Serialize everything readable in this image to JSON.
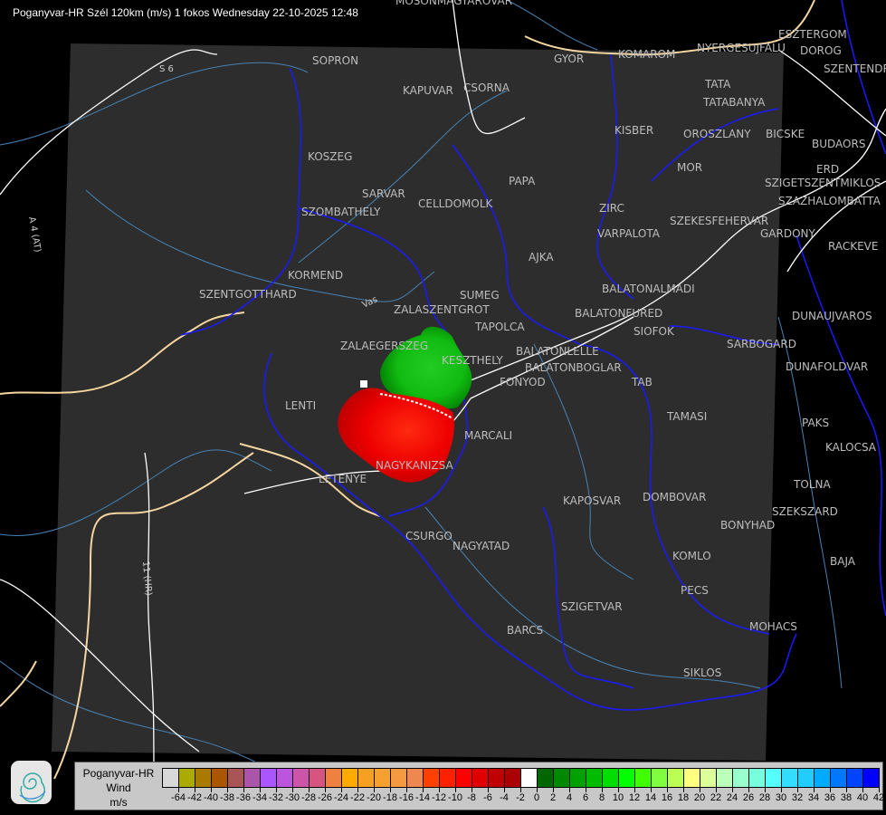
{
  "title": "Poganyvar-HR Szél 120km (m/s) 1 fokos Wednesday 22-10-2025 12:48",
  "colors": {
    "background": "#000000",
    "radar_area": "#2d2d2d",
    "roads": "#ffffff",
    "borders": "#0000ff",
    "rivers": "#4682b4",
    "country_border": "#f5d5a0",
    "city_labels": "#bdbdbd"
  },
  "cities": [
    "MOSONMAGYAROVAR",
    "SOPRON",
    "KAPUVAR",
    "CSORNA",
    "GYOR",
    "KOMAROM",
    "ESZTERGOM",
    "NYERGESUJFALU",
    "DOROG",
    "SZENTENDRE",
    "TATA",
    "TATABANYA",
    "KISBER",
    "OROSZLANY",
    "BICSKE",
    "BUDAORS",
    "MOR",
    "ERD",
    "SZIGETSZENTMIKLOS",
    "SZAZHALOMBATTA",
    "KOSZEG",
    "PAPA",
    "SARVAR",
    "SZOMBATHELY",
    "CELLDOMOLK",
    "ZIRC",
    "VARPALOTA",
    "SZEKESFEHERVAR",
    "GARDONY",
    "RACKEVE",
    "AJKA",
    "KORMEND",
    "SZENTGOTTHARD",
    "BALATONALMADI",
    "SUMEG",
    "ZALASZENTGROT",
    "BALATONFURED",
    "SIOFOK",
    "DUNAUJVAROS",
    "TAPOLCA",
    "SARBOGARD",
    "ZALAEGERSZEG",
    "KESZTHELY",
    "BALATONLELLE",
    "BALATONBOGLAR",
    "FONYOD",
    "DUNAFOLDVAR",
    "TAB",
    "LENTI",
    "TAMASI",
    "PAKS",
    "MARCALI",
    "KALOCSA",
    "NAGYKANIZSA",
    "LETENYE",
    "TOLNA",
    "KAPOSVAR",
    "DOMBOVAR",
    "SZEKSZARD",
    "BONYHAD",
    "CSURGO",
    "NAGYATAD",
    "KOMLO",
    "BAJA",
    "PECS",
    "SZIGETVAR",
    "MOHACS",
    "BARCS",
    "SIKLOS"
  ],
  "road_labels": [
    "S 6",
    "A 4 (AT)",
    "11 (HR)",
    "Vas"
  ],
  "legend": {
    "name": "Poganyvar-HR",
    "quantity": "Wind",
    "unit": "m/s",
    "colors": [
      "#d8d8d8",
      "#aaaa00",
      "#aa7a00",
      "#aa5500",
      "#aa5555",
      "#aa55aa",
      "#aa55ff",
      "#bb55dd",
      "#cc55aa",
      "#d55580",
      "#ee8040",
      "#ffaa00",
      "#f5a020",
      "#f5a030",
      "#f59a40",
      "#ee8850",
      "#ff4000",
      "#ff2000",
      "#ff0000",
      "#e00000",
      "#c00000",
      "#aa0000",
      "#ffffff",
      "#006600",
      "#008800",
      "#00a000",
      "#00bb00",
      "#00dd00",
      "#00ff00",
      "#40ff00",
      "#80ff40",
      "#bbff55",
      "#ffff80",
      "#ddff99",
      "#bbffbb",
      "#99ffcc",
      "#77ffdd",
      "#55ffff",
      "#33ddff",
      "#22ccff",
      "#00aaff",
      "#0077ff",
      "#0044ff",
      "#0000ff"
    ],
    "labels": [
      "-64",
      "-42",
      "-40",
      "-38",
      "-36",
      "-34",
      "-32",
      "-30",
      "-28",
      "-26",
      "-24",
      "-22",
      "-20",
      "-18",
      "-16",
      "-14",
      "-12",
      "-10",
      "-8",
      "-6",
      "-4",
      "-2",
      "0",
      "2",
      "4",
      "6",
      "8",
      "10",
      "12",
      "14",
      "16",
      "18",
      "20",
      "22",
      "24",
      "26",
      "28",
      "30",
      "32",
      "34",
      "36",
      "38",
      "40",
      "42"
    ]
  },
  "logo": {
    "icon": "swirl-logo-icon"
  }
}
